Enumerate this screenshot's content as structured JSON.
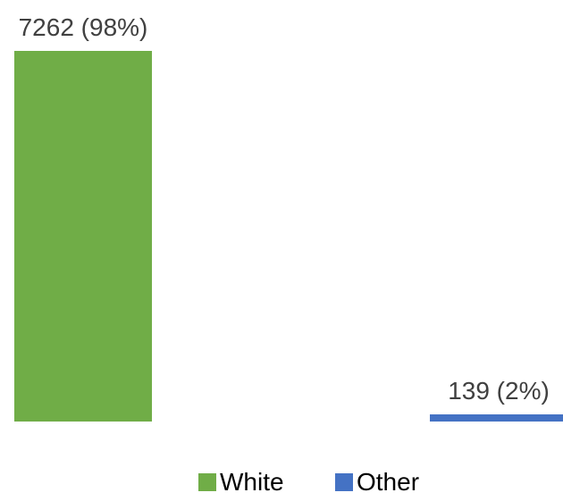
{
  "chart_data": {
    "type": "bar",
    "categories": [
      "White",
      "Other"
    ],
    "series": [
      {
        "name": "White",
        "values": [
          7262,
          null
        ],
        "data_labels": [
          "7262 (98%)",
          null
        ],
        "color": "#70ad47"
      },
      {
        "name": "Other",
        "values": [
          null,
          139
        ],
        "data_labels": [
          null,
          "139 (2%)"
        ],
        "color": "#4472c4"
      }
    ],
    "legend": {
      "position": "bottom",
      "entries": [
        "White",
        "Other"
      ]
    },
    "grid": false,
    "axes_visible": false
  }
}
